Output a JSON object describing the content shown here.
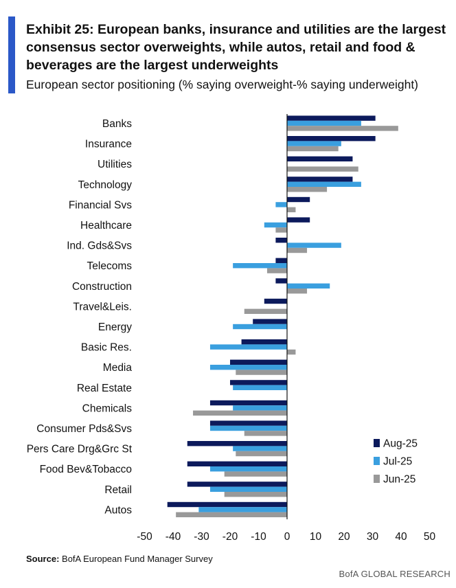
{
  "header": {
    "title": "Exhibit 25: European banks, insurance and utilities are the largest consensus sector overweights, while autos, retail and food & beverages are the largest underweights",
    "subtitle": "European sector positioning (% saying overweight-% saying underweight)"
  },
  "footer": {
    "source_label": "Source:",
    "source_text": "BofA European Fund Manager Survey",
    "brand": "BofA GLOBAL RESEARCH"
  },
  "chart_data": {
    "type": "bar",
    "orientation": "horizontal",
    "title": "European sector positioning (% saying overweight-% saying underweight)",
    "xlabel": "",
    "ylabel": "",
    "xlim": [
      -50,
      50
    ],
    "xticks": [
      -50,
      -40,
      -30,
      -20,
      -10,
      0,
      10,
      20,
      30,
      40,
      50
    ],
    "grid": false,
    "legend_position": "bottom-right",
    "categories": [
      "Banks",
      "Insurance",
      "Utilities",
      "Technology",
      "Financial Svs",
      "Healthcare",
      "Ind. Gds&Svs",
      "Telecoms",
      "Construction",
      "Travel&Leis.",
      "Energy",
      "Basic Res.",
      "Media",
      "Real Estate",
      "Chemicals",
      "Consumer Pds&Svs",
      "Pers Care Drg&Grc St",
      "Food Bev&Tobacco",
      "Retail",
      "Autos"
    ],
    "series": [
      {
        "name": "Aug-25",
        "color": "#0c1a5c",
        "values": [
          31,
          31,
          23,
          23,
          8,
          8,
          -4,
          -4,
          -4,
          -8,
          -12,
          -16,
          -20,
          -20,
          -27,
          -27,
          -35,
          -35,
          -35,
          -42
        ]
      },
      {
        "name": "Jul-25",
        "color": "#3a9fdf",
        "values": [
          26,
          19,
          0,
          26,
          -4,
          -8,
          19,
          -19,
          15,
          0,
          -19,
          -27,
          -27,
          -19,
          -19,
          -27,
          -19,
          -27,
          -27,
          -31
        ]
      },
      {
        "name": "Jun-25",
        "color": "#999999",
        "values": [
          39,
          18,
          25,
          14,
          3,
          -4,
          7,
          -7,
          7,
          -15,
          0,
          3,
          -18,
          0,
          -33,
          -15,
          -18,
          -22,
          -22,
          -39
        ]
      }
    ]
  }
}
